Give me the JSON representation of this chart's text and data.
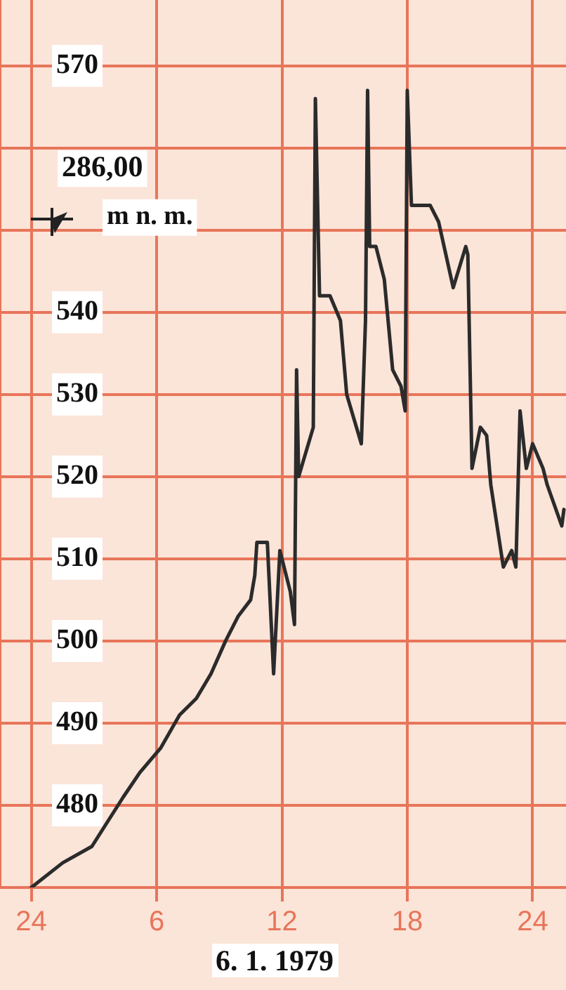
{
  "chart_data": {
    "type": "line",
    "x": [
      "1979-01-06T00:00",
      "1979-01-06T01:30",
      "1979-01-06T02:54",
      "1979-01-06T04:24",
      "1979-01-06T05:12",
      "1979-01-06T06:12",
      "1979-01-06T07:06",
      "1979-01-06T07:54",
      "1979-01-06T08:36",
      "1979-01-06T09:18",
      "1979-01-06T09:54",
      "1979-01-06T10:30",
      "1979-01-06T10:42",
      "1979-01-06T10:48",
      "1979-01-06T11:18",
      "1979-01-06T11:36",
      "1979-01-06T11:54",
      "1979-01-06T12:24",
      "1979-01-06T12:36",
      "1979-01-06T12:42",
      "1979-01-06T12:48",
      "1979-01-06T13:30",
      "1979-01-06T13:36",
      "1979-01-06T13:48",
      "1979-01-06T14:18",
      "1979-01-06T14:48",
      "1979-01-06T15:06",
      "1979-01-06T15:48",
      "1979-01-06T16:00",
      "1979-01-06T16:06",
      "1979-01-06T16:12",
      "1979-01-06T16:30",
      "1979-01-06T16:54",
      "1979-01-06T17:18",
      "1979-01-06T17:42",
      "1979-01-06T17:54",
      "1979-01-06T18:00",
      "1979-01-06T18:12",
      "1979-01-06T19:06",
      "1979-01-06T19:30",
      "1979-01-06T20:12",
      "1979-01-06T20:48",
      "1979-01-06T20:54",
      "1979-01-06T21:06",
      "1979-01-06T21:30",
      "1979-01-06T21:48",
      "1979-01-06T22:00",
      "1979-01-06T22:36",
      "1979-01-06T23:00",
      "1979-01-06T23:12",
      "1979-01-06T23:24",
      "1979-01-06T23:42",
      "1979-01-07T00:00",
      "1979-01-07T00:30",
      "1979-01-07T00:42",
      "1979-01-07T01:24",
      "1979-01-07T01:30"
    ],
    "values": [
      470,
      473,
      475,
      481,
      484,
      487,
      491,
      493,
      496,
      500,
      503,
      505,
      508,
      512,
      512,
      496,
      511,
      506,
      502,
      533,
      520,
      526,
      566,
      542,
      542,
      539,
      530,
      524,
      539,
      567,
      548,
      548,
      544,
      533,
      531,
      528,
      567,
      553,
      553,
      551,
      543,
      548,
      547,
      521,
      526,
      525,
      519,
      509,
      511,
      509,
      528,
      521,
      524,
      521,
      519,
      514,
      516
    ],
    "color": "#2b2b2b",
    "xlim": [
      "1979-01-05T22:30",
      "1979-01-07T01:36"
    ],
    "xticks": [
      {
        "value": "1979-01-06T00:00",
        "label": "24"
      },
      {
        "value": "1979-01-06T06:00",
        "label": "6"
      },
      {
        "value": "1979-01-06T12:00",
        "label": "12"
      },
      {
        "value": "1979-01-06T18:00",
        "label": "18"
      },
      {
        "value": "1979-01-07T00:00",
        "label": "24"
      }
    ],
    "ylim": [
      470,
      578
    ],
    "yticks": [
      480,
      490,
      500,
      510,
      520,
      530,
      540,
      {
        "value": 550,
        "label": null
      },
      {
        "value": 560,
        "label": null
      },
      570
    ],
    "grid": true,
    "marker": "none",
    "line_style": "solid",
    "annotations": [
      "286,00",
      "m n. m.",
      "6. 1. 1979"
    ]
  }
}
